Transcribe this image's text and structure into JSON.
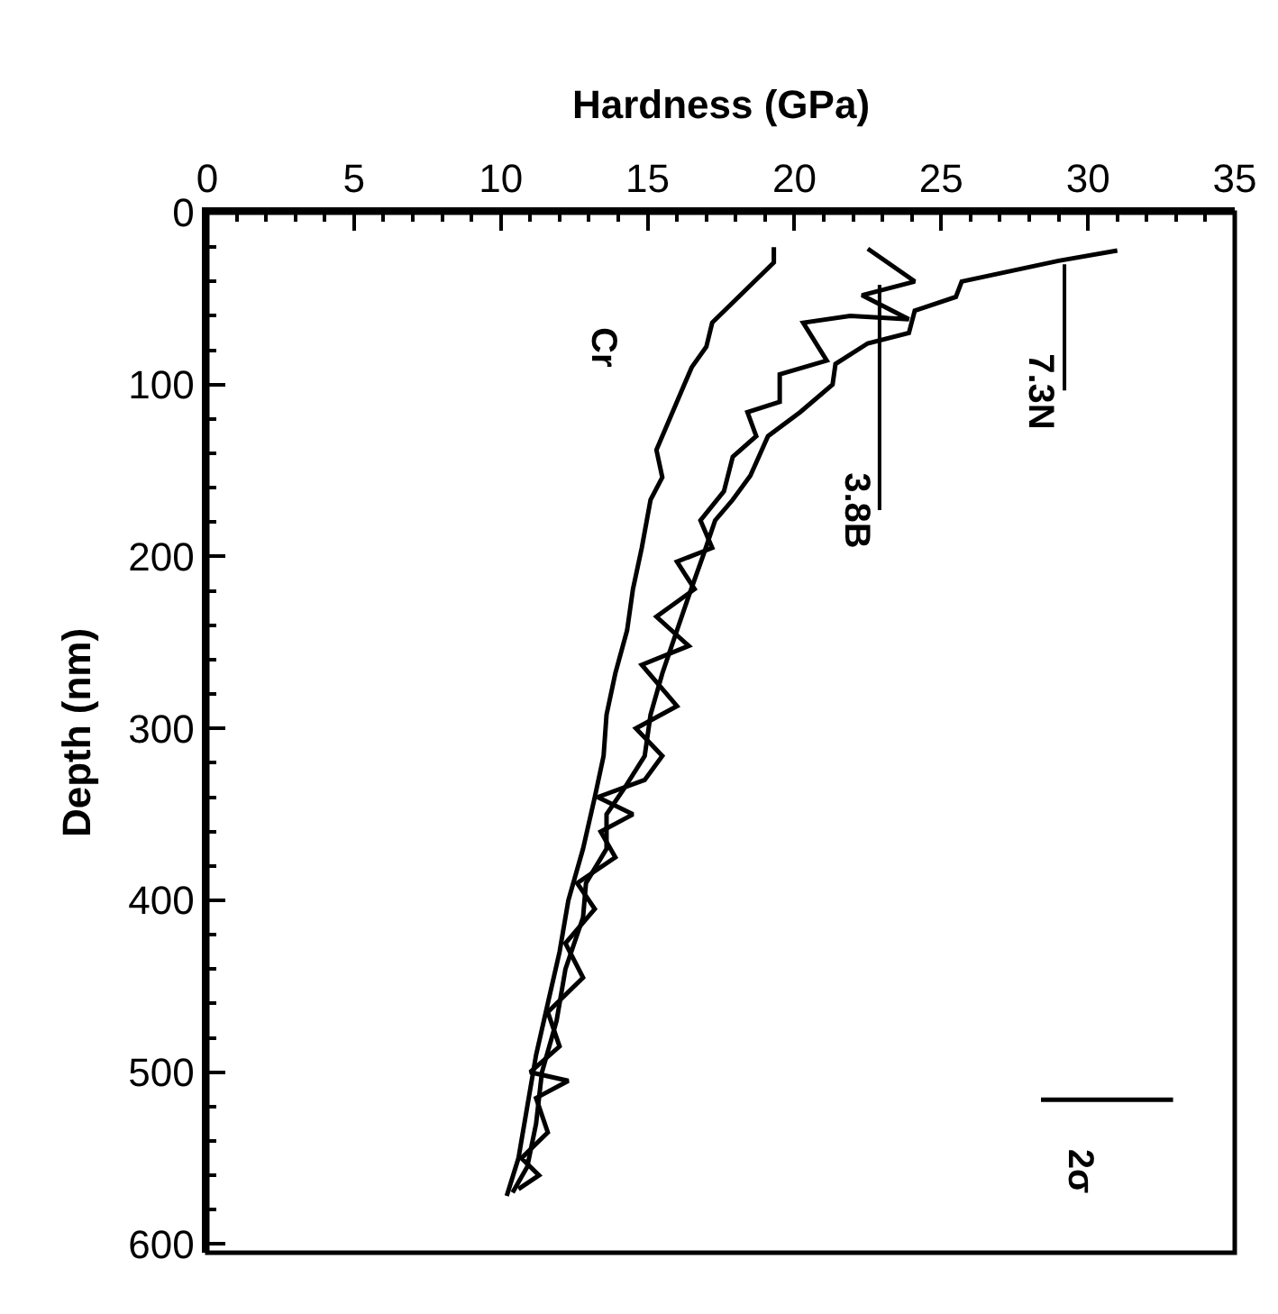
{
  "chart_data": {
    "type": "line",
    "xlabel": "Hardness (GPa)",
    "ylabel": "Depth (nm)",
    "xlim": [
      0,
      35
    ],
    "xticks": [
      0,
      5,
      10,
      15,
      20,
      25,
      30,
      35
    ],
    "ylim": [
      605,
      0
    ],
    "yticks": [
      0,
      100,
      200,
      300,
      400,
      500,
      600
    ],
    "marker": "none",
    "line_style": "solid",
    "series": [
      {
        "color": "#000000",
        "x": [
          31.0,
          29.0,
          25.7,
          25.5,
          24.1,
          23.9,
          22.5,
          21.4,
          21.3,
          20.2,
          19.1,
          18.5,
          17.9,
          17.3,
          16.9,
          16.4,
          16.0,
          15.5,
          15.1,
          14.9,
          14.2,
          13.6,
          13.6,
          12.9,
          12.8,
          12.2,
          11.9,
          11.4,
          11.2,
          10.9,
          10.4
        ],
        "values": [
          22,
          28,
          40,
          49,
          57,
          70,
          76,
          88,
          100,
          116,
          130,
          153,
          167,
          179,
          199,
          223,
          243,
          268,
          292,
          316,
          335,
          350,
          370,
          390,
          410,
          440,
          470,
          500,
          530,
          555,
          570
        ]
      },
      {
        "color": "#000000",
        "x": [
          22.5,
          24.1,
          22.3,
          23.9,
          21.9,
          20.3,
          21.1,
          19.5,
          19.5,
          18.4,
          18.7,
          17.9,
          17.6,
          16.8,
          17.2,
          16.0,
          16.6,
          15.3,
          16.4,
          14.8,
          16.0,
          14.6,
          15.5,
          14.9,
          13.3,
          14.5,
          13.4,
          13.9,
          12.6,
          13.2,
          12.2,
          12.8,
          11.6,
          12.0,
          11.0,
          12.3,
          11.2,
          11.6,
          10.7,
          11.3,
          10.6
        ],
        "values": [
          21,
          40,
          48,
          62,
          60,
          64,
          86,
          94,
          110,
          116,
          130,
          142,
          162,
          179,
          195,
          203,
          219,
          235,
          252,
          263,
          287,
          300,
          316,
          330,
          340,
          350,
          360,
          375,
          390,
          405,
          425,
          445,
          465,
          485,
          500,
          505,
          515,
          535,
          550,
          560,
          568
        ]
      },
      {
        "color": "#000000",
        "x": [
          19.3,
          19.3,
          17.2,
          17.0,
          16.5,
          16.0,
          15.3,
          15.5,
          15.1,
          14.8,
          14.5,
          14.3,
          13.9,
          13.6,
          13.5,
          13.2,
          12.8,
          12.3,
          12.0,
          11.6,
          11.2,
          10.9,
          10.6,
          10.2
        ],
        "values": [
          20,
          29,
          64,
          78,
          90,
          110,
          138,
          154,
          167,
          195,
          219,
          243,
          268,
          292,
          316,
          340,
          370,
          400,
          430,
          460,
          490,
          520,
          550,
          572
        ]
      },
      {
        "color": "#000000",
        "x": [
          28.4,
          32.9
        ],
        "values": [
          516,
          516
        ]
      }
    ],
    "annotations": [
      {
        "text": "7.3N",
        "x": 29.2,
        "y": 30
      },
      {
        "text": "3.8B",
        "x": 22.9,
        "y": 42
      },
      {
        "text": "Cr",
        "x": 17.0,
        "y": 78
      },
      {
        "text": "2σ",
        "x": 29.7,
        "y": 516
      }
    ]
  }
}
